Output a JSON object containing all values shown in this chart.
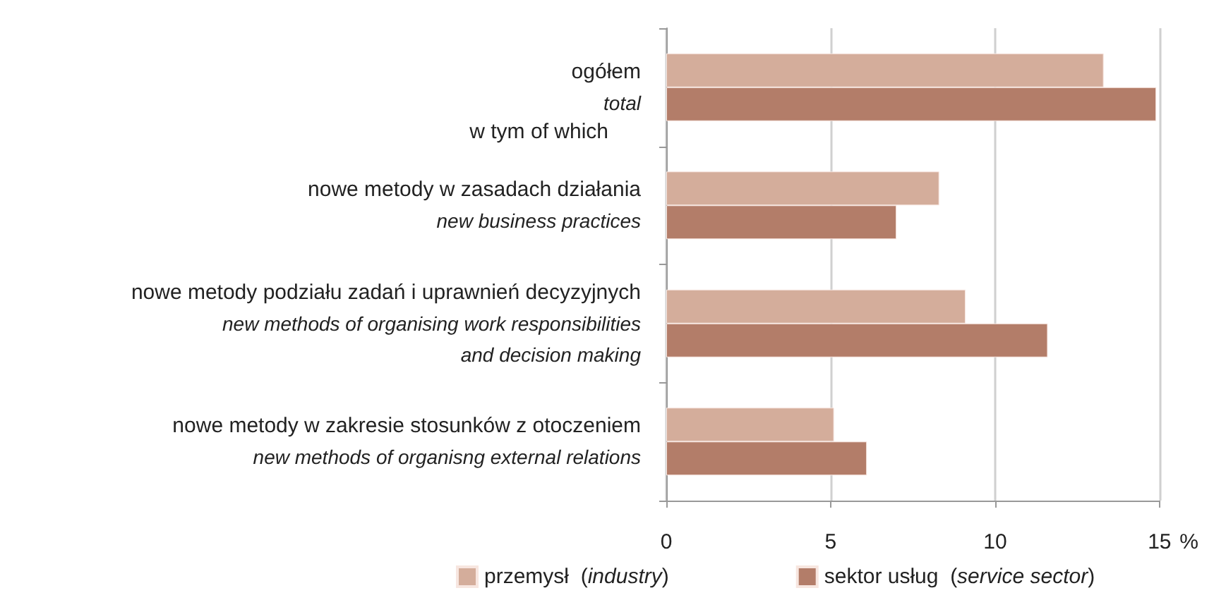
{
  "chart_data": {
    "type": "bar",
    "orientation": "horizontal",
    "categories": [
      "ogółem\ntotal",
      "nowe metody w zasadach działania\nnew business practices",
      "nowe metody podziału zadań i uprawnień decyzyjnych\nnew methods of organising work responsibilities\nand decision making",
      "nowe metody w zakresie stosunków z otoczeniem\nnew methods of organisng external relations"
    ],
    "series": [
      {
        "name": "przemysł (industry)",
        "color": "#d4ad9b",
        "values": [
          13.3,
          8.3,
          9.1,
          5.1
        ]
      },
      {
        "name": "sektor usług (service sector)",
        "color": "#b37d69",
        "values": [
          14.9,
          7.0,
          11.6,
          6.1
        ]
      }
    ],
    "xlim": [
      0,
      15
    ],
    "xticks": [
      0,
      5,
      10,
      15
    ],
    "xlabel": "%",
    "grid": "x",
    "legend": "bottom",
    "annotations": [
      "w tym of which"
    ]
  }
}
